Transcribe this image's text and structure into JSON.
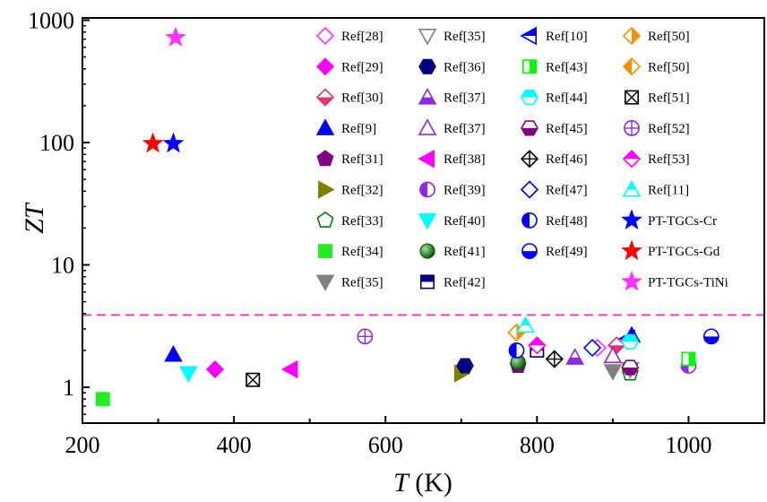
{
  "chart_data": {
    "type": "scatter",
    "title": "",
    "xlabel": {
      "italic": "T",
      "rest": " (K)"
    },
    "ylabel": "ZT",
    "xlim": [
      200,
      1100
    ],
    "ylim": [
      0.5,
      1000
    ],
    "yscale": "log",
    "grid": false,
    "legend_position": "top-right",
    "x_ticks": [
      {
        "value": 200,
        "label": "200"
      },
      {
        "value": 400,
        "label": "400"
      },
      {
        "value": 600,
        "label": "600"
      },
      {
        "value": 800,
        "label": "800"
      },
      {
        "value": 1000,
        "label": "1000"
      }
    ],
    "y_ticks": [
      {
        "value": 1,
        "label": "1"
      },
      {
        "value": 10,
        "label": "10"
      },
      {
        "value": 100,
        "label": "100"
      },
      {
        "value": 1000,
        "label": "1000"
      }
    ],
    "reference_line": {
      "y": 3.9,
      "color": "#e040e0",
      "style": "dashed"
    },
    "series": [
      {
        "name": "Ref[28]",
        "marker": "diamond",
        "fill": "none",
        "color": "#ff33ff",
        "points": [
          [
            880,
            2.1
          ]
        ]
      },
      {
        "name": "Ref[29]",
        "marker": "diamond",
        "fill": "full",
        "color": "#ff00ff",
        "points": [
          [
            375,
            1.4
          ]
        ]
      },
      {
        "name": "Ref[30]",
        "marker": "diamond",
        "fill": "bottom",
        "color": "#e8306a",
        "points": [
          [
            905,
            2.2
          ]
        ]
      },
      {
        "name": "Ref[9]",
        "marker": "triangle-up",
        "fill": "full",
        "color": "#0000ff",
        "points": [
          [
            320,
            1.85
          ],
          [
            925,
            2.65
          ]
        ]
      },
      {
        "name": "Ref[31]",
        "marker": "pentagon",
        "fill": "full",
        "color": "#800080",
        "points": [
          [
            775,
            1.5
          ]
        ]
      },
      {
        "name": "Ref[32]",
        "marker": "triangle-right",
        "fill": "full",
        "color": "#808000",
        "points": [
          [
            700,
            1.3
          ]
        ]
      },
      {
        "name": "Ref[33]",
        "marker": "pentagon",
        "fill": "none",
        "color": "#008000",
        "points": [
          [
            923,
            1.3
          ]
        ]
      },
      {
        "name": "Ref[34]",
        "marker": "square",
        "fill": "full",
        "color": "#22ee22",
        "points": [
          [
            227,
            0.8
          ]
        ]
      },
      {
        "name": "Ref[35]",
        "marker": "triangle-down",
        "fill": "full",
        "color": "#808080",
        "points": [
          [
            900,
            1.35
          ]
        ]
      },
      {
        "name": "Ref[35]",
        "marker": "triangle-down",
        "fill": "none",
        "color": "#808080",
        "points": [
          [
            923,
            1.4
          ]
        ]
      },
      {
        "name": "Ref[36]",
        "marker": "hexagon",
        "fill": "full",
        "color": "#000080",
        "points": [
          [
            705,
            1.5
          ]
        ]
      },
      {
        "name": "Ref[37]",
        "marker": "triangle-up",
        "fill": "bottom",
        "color": "#8a2be2",
        "points": [
          [
            850,
            1.75
          ]
        ]
      },
      {
        "name": "Ref[37]",
        "marker": "triangle-up",
        "fill": "none",
        "color": "#8a2be2",
        "points": [
          [
            900,
            1.8
          ]
        ]
      },
      {
        "name": "Ref[38]",
        "marker": "triangle-left",
        "fill": "full",
        "color": "#ff00ff",
        "points": [
          [
            475,
            1.4
          ]
        ]
      },
      {
        "name": "Ref[39]",
        "marker": "circle",
        "fill": "left",
        "color": "#8a2be2",
        "points": [
          [
            1000,
            1.5
          ]
        ]
      },
      {
        "name": "Ref[40]",
        "marker": "triangle-down",
        "fill": "full",
        "color": "#00ffff",
        "points": [
          [
            340,
            1.3
          ]
        ]
      },
      {
        "name": "Ref[41]",
        "marker": "sphere",
        "fill": "full",
        "color": "#008000",
        "points": [
          [
            775,
            1.6
          ]
        ]
      },
      {
        "name": "Ref[42]",
        "marker": "square",
        "fill": "top",
        "color": "#000080",
        "points": [
          [
            800,
            2.0
          ]
        ]
      },
      {
        "name": "Ref[10]",
        "marker": "triangle-left",
        "fill": "top",
        "color": "#0000ff",
        "points": [
          [
            920,
            2.5
          ]
        ]
      },
      {
        "name": "Ref[43]",
        "marker": "square",
        "fill": "right",
        "color": "#00ff00",
        "points": [
          [
            1000,
            1.7
          ]
        ]
      },
      {
        "name": "Ref[44]",
        "marker": "hexagon",
        "fill": "top",
        "color": "#00ffff",
        "points": [
          [
            923,
            2.35
          ]
        ]
      },
      {
        "name": "Ref[45]",
        "marker": "hexagon",
        "fill": "bottom",
        "color": "#800080",
        "points": [
          [
            923,
            1.45
          ]
        ]
      },
      {
        "name": "Ref[46]",
        "marker": "diamond-plus",
        "fill": "none",
        "color": "#000000",
        "points": [
          [
            823,
            1.7
          ]
        ]
      },
      {
        "name": "Ref[47]",
        "marker": "diamond",
        "fill": "none",
        "color": "#0000ff",
        "points": [
          [
            873,
            2.1
          ]
        ]
      },
      {
        "name": "Ref[48]",
        "marker": "circle",
        "fill": "left",
        "color": "#0000ff",
        "points": [
          [
            773,
            2.0
          ]
        ]
      },
      {
        "name": "Ref[49]",
        "marker": "circle",
        "fill": "bottom",
        "color": "#0000ff",
        "points": [
          [
            1030,
            2.6
          ]
        ]
      },
      {
        "name": "Ref[50]",
        "marker": "diamond",
        "fill": "right",
        "color": "#ff8c00",
        "points": [
          [
            773,
            2.8
          ]
        ]
      },
      {
        "name": "Ref[50]",
        "marker": "diamond",
        "fill": "left",
        "color": "#ff8c00",
        "points": []
      },
      {
        "name": "Ref[51]",
        "marker": "square-x",
        "fill": "none",
        "color": "#000000",
        "points": [
          [
            425,
            1.15
          ]
        ]
      },
      {
        "name": "Ref[52]",
        "marker": "circle-plus",
        "fill": "none",
        "color": "#8a2be2",
        "points": [
          [
            573,
            2.6
          ]
        ]
      },
      {
        "name": "Ref[53]",
        "marker": "diamond",
        "fill": "top",
        "color": "#ff00ff",
        "points": [
          [
            800,
            2.2
          ]
        ]
      },
      {
        "name": "Ref[11]",
        "marker": "triangle-up",
        "fill": "top",
        "color": "#00ffff",
        "points": [
          [
            785,
            3.2
          ]
        ]
      },
      {
        "name": "PT-TGCs-Cr",
        "marker": "star",
        "fill": "full",
        "color": "#0000ff",
        "points": [
          [
            320,
            98
          ]
        ]
      },
      {
        "name": "PT-TGCs-Gd",
        "marker": "star",
        "fill": "full",
        "color": "#ff0000",
        "points": [
          [
            293,
            98
          ]
        ]
      },
      {
        "name": "PT-TGCs-TiNi",
        "marker": "star",
        "fill": "full",
        "color": "#ff33ff",
        "points": [
          [
            323,
            720
          ]
        ]
      }
    ]
  }
}
